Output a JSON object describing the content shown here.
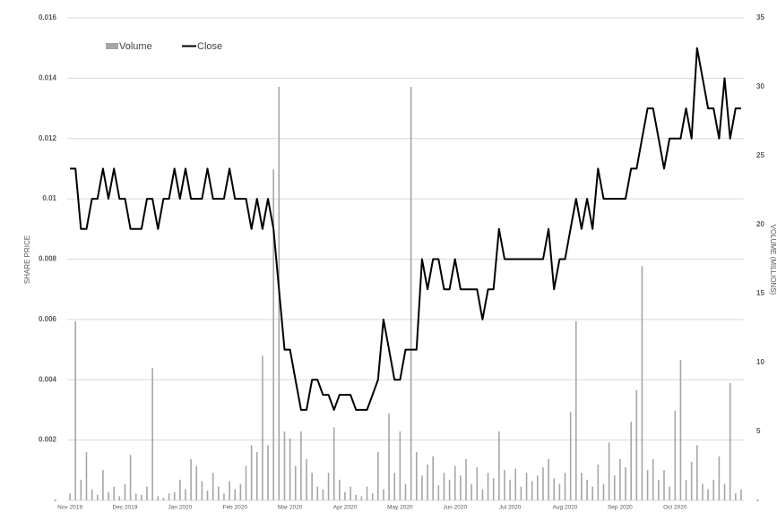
{
  "chart_data": {
    "type": "bar-line",
    "y_label": "SHARE PRICE",
    "y2_label": "VOLUME (MILLIONS)",
    "categories": [
      "Nov 2019",
      null,
      null,
      null,
      null,
      null,
      null,
      null,
      null,
      null,
      "Dec 2019",
      null,
      null,
      null,
      null,
      null,
      null,
      null,
      null,
      null,
      "Jan 2020",
      null,
      null,
      null,
      null,
      null,
      null,
      null,
      null,
      null,
      "Feb 2020",
      null,
      null,
      null,
      null,
      null,
      null,
      null,
      null,
      null,
      "Mar 2020",
      null,
      null,
      null,
      null,
      null,
      null,
      null,
      null,
      null,
      "Apr 2020",
      null,
      null,
      null,
      null,
      null,
      null,
      null,
      null,
      null,
      "May 2020",
      null,
      null,
      null,
      null,
      null,
      null,
      null,
      null,
      null,
      "Jun 2020",
      null,
      null,
      null,
      null,
      null,
      null,
      null,
      null,
      null,
      "Jul 2020",
      null,
      null,
      null,
      null,
      null,
      null,
      null,
      null,
      null,
      "Aug 2020",
      null,
      null,
      null,
      null,
      null,
      null,
      null,
      null,
      null,
      "Sep 2020",
      null,
      null,
      null,
      null,
      null,
      null,
      null,
      null,
      null,
      "Oct 2020",
      null,
      null,
      null,
      null,
      null,
      null,
      null,
      null,
      null,
      null,
      null,
      null
    ],
    "series": [
      {
        "name": "Volume",
        "type": "bar",
        "axis": "y2",
        "color": "#a6a6a6",
        "values": [
          0.5,
          13,
          1.5,
          3.5,
          0.8,
          0.4,
          2.2,
          0.6,
          1,
          0.3,
          1.2,
          3.3,
          0.5,
          0.4,
          1,
          9.6,
          0.3,
          0.2,
          0.5,
          0.6,
          1.5,
          0.8,
          3,
          2.5,
          1.4,
          0.7,
          2,
          1,
          0.5,
          1.4,
          0.8,
          1.2,
          2.5,
          4,
          3.5,
          10.5,
          4,
          24,
          30,
          5,
          4.5,
          2.5,
          5,
          3,
          2,
          1,
          0.8,
          2,
          5.3,
          1.5,
          0.6,
          1,
          0.4,
          0.3,
          1,
          0.5,
          3.5,
          0.8,
          6.3,
          2,
          5,
          1.2,
          30,
          3.5,
          1.8,
          2.6,
          3.2,
          1.1,
          2,
          1.5,
          2.5,
          1.8,
          3,
          1.2,
          2.4,
          0.8,
          2,
          1.6,
          5,
          2.2,
          1.5,
          2.3,
          1,
          2,
          1.4,
          1.8,
          2.4,
          3,
          1.6,
          1.2,
          2,
          6.4,
          13,
          2,
          1.5,
          1,
          2.6,
          1.2,
          4.2,
          1.8,
          3,
          2.4,
          5.7,
          8,
          17,
          2.2,
          3,
          1.5,
          2.2,
          1,
          6.5,
          10.2,
          1.5,
          2.8,
          4,
          1.2,
          0.8,
          1.5,
          3.2,
          1.2,
          8.5,
          0.5,
          0.8
        ]
      },
      {
        "name": "Close",
        "type": "line",
        "color": "#000000",
        "values": [
          0.011,
          0.011,
          0.009,
          0.009,
          0.01,
          0.01,
          0.011,
          0.01,
          0.011,
          0.01,
          0.01,
          0.009,
          0.009,
          0.009,
          0.01,
          0.01,
          0.009,
          0.01,
          0.01,
          0.011,
          0.01,
          0.011,
          0.01,
          0.01,
          0.01,
          0.011,
          0.01,
          0.01,
          0.01,
          0.011,
          0.01,
          0.01,
          0.01,
          0.009,
          0.01,
          0.009,
          0.01,
          0.009,
          0.007,
          0.005,
          0.005,
          0.004,
          0.003,
          0.003,
          0.004,
          0.004,
          0.0035,
          0.0035,
          0.003,
          0.0035,
          0.0035,
          0.0035,
          0.003,
          0.003,
          0.003,
          0.0035,
          0.004,
          0.006,
          0.005,
          0.004,
          0.004,
          0.005,
          0.005,
          0.005,
          0.008,
          0.007,
          0.008,
          0.008,
          0.007,
          0.007,
          0.008,
          0.007,
          0.007,
          0.007,
          0.007,
          0.006,
          0.007,
          0.007,
          0.009,
          0.008,
          0.008,
          0.008,
          0.008,
          0.008,
          0.008,
          0.008,
          0.008,
          0.009,
          0.007,
          0.008,
          0.008,
          0.009,
          0.01,
          0.009,
          0.01,
          0.009,
          0.011,
          0.01,
          0.01,
          0.01,
          0.01,
          0.01,
          0.011,
          0.011,
          0.012,
          0.013,
          0.013,
          0.012,
          0.011,
          0.012,
          0.012,
          0.012,
          0.013,
          0.012,
          0.015,
          0.014,
          0.013,
          0.013,
          0.012,
          0.014,
          0.012,
          0.013,
          0.013
        ]
      }
    ],
    "ylim": [
      0,
      0.016
    ],
    "yticks": [
      {
        "value": 0,
        "label": "-"
      },
      0.002,
      0.004,
      0.006,
      0.008,
      0.01,
      0.012,
      0.014,
      0.016
    ],
    "y2lim": [
      0,
      35
    ],
    "y2ticks": [
      {
        "value": 0,
        "label": "-"
      },
      5,
      10,
      15,
      20,
      25,
      30,
      35
    ],
    "grid": true,
    "legend": "top-left"
  }
}
